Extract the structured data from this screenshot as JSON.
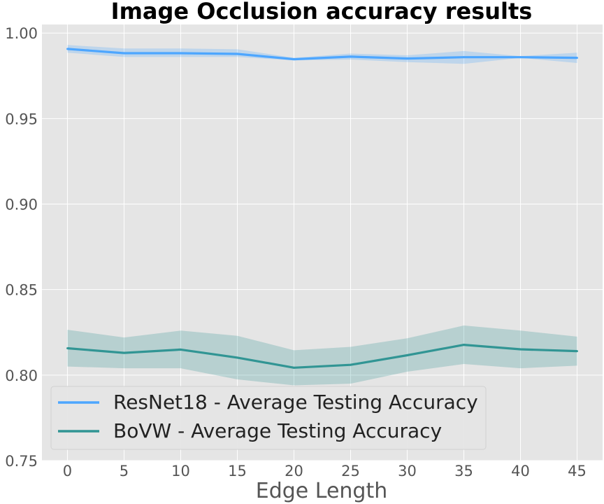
{
  "chart_data": {
    "type": "line",
    "title": "Image Occlusion accuracy results",
    "xlabel": "Edge Length",
    "ylabel": "",
    "x": [
      0,
      5,
      10,
      15,
      20,
      25,
      30,
      35,
      40,
      45
    ],
    "xlim": [
      -2.25,
      47.25
    ],
    "ylim": [
      0.75,
      1.005
    ],
    "xticks": [
      "0",
      "5",
      "10",
      "15",
      "20",
      "25",
      "30",
      "35",
      "40",
      "45"
    ],
    "yticks": [
      "0.75",
      "0.80",
      "0.85",
      "0.90",
      "0.95",
      "1.00"
    ],
    "grid": true,
    "legend_position": "lower-left",
    "series": [
      {
        "name": "ResNet18 - Average Testing Accuracy",
        "color": "#4da6ff",
        "values": [
          0.9907,
          0.9882,
          0.9882,
          0.9878,
          0.9847,
          0.9862,
          0.9851,
          0.9859,
          0.9859,
          0.9855
        ],
        "lower": [
          0.9885,
          0.986,
          0.986,
          0.986,
          0.984,
          0.9845,
          0.983,
          0.982,
          0.9855,
          0.9825
        ],
        "upper": [
          0.993,
          0.991,
          0.991,
          0.9905,
          0.9855,
          0.988,
          0.987,
          0.9895,
          0.9865,
          0.9885
        ]
      },
      {
        "name": "BoVW - Average Testing Accuracy",
        "color": "#319594",
        "values": [
          0.8157,
          0.813,
          0.8149,
          0.8102,
          0.8043,
          0.806,
          0.8116,
          0.8177,
          0.8151,
          0.814
        ],
        "lower": [
          0.805,
          0.804,
          0.804,
          0.7975,
          0.794,
          0.795,
          0.802,
          0.8065,
          0.804,
          0.8055
        ],
        "upper": [
          0.8265,
          0.822,
          0.826,
          0.823,
          0.8145,
          0.8165,
          0.8215,
          0.829,
          0.826,
          0.8225
        ]
      }
    ]
  }
}
